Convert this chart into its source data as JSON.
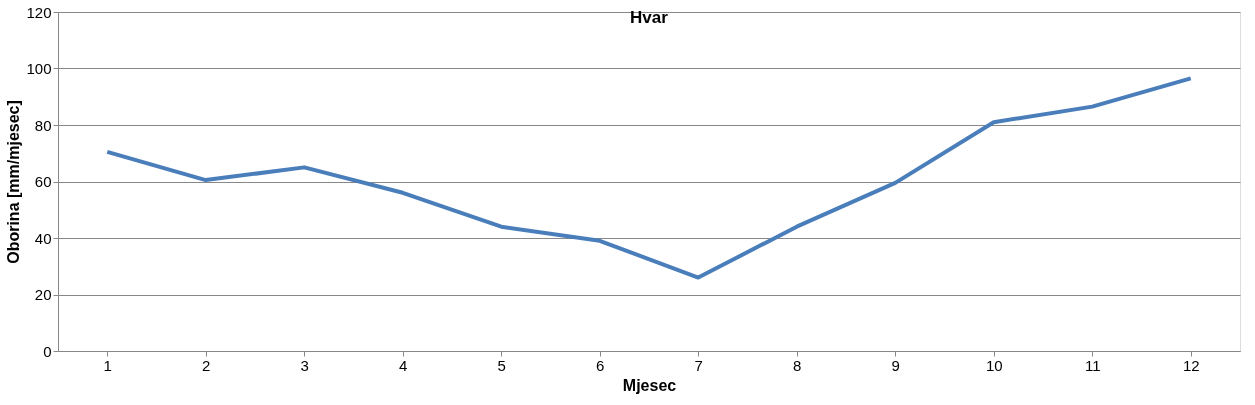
{
  "chart_data": {
    "type": "line",
    "title": "Hvar",
    "xlabel": "Mjesec",
    "ylabel": "Oborina [mm/mjesec]",
    "categories": [
      "1",
      "2",
      "3",
      "4",
      "5",
      "6",
      "7",
      "8",
      "9",
      "10",
      "11",
      "12"
    ],
    "series": [
      {
        "color": "#4a7ebb",
        "values": [
          70.5,
          60.5,
          65,
          56,
          44,
          39,
          26,
          44,
          59.5,
          81,
          86.5,
          96.5
        ]
      }
    ],
    "ylim": [
      0,
      120
    ],
    "yticks": [
      0,
      20,
      40,
      60,
      80,
      100,
      120
    ],
    "grid": "y",
    "legend": false,
    "marker": "none",
    "line_style": "solid"
  }
}
